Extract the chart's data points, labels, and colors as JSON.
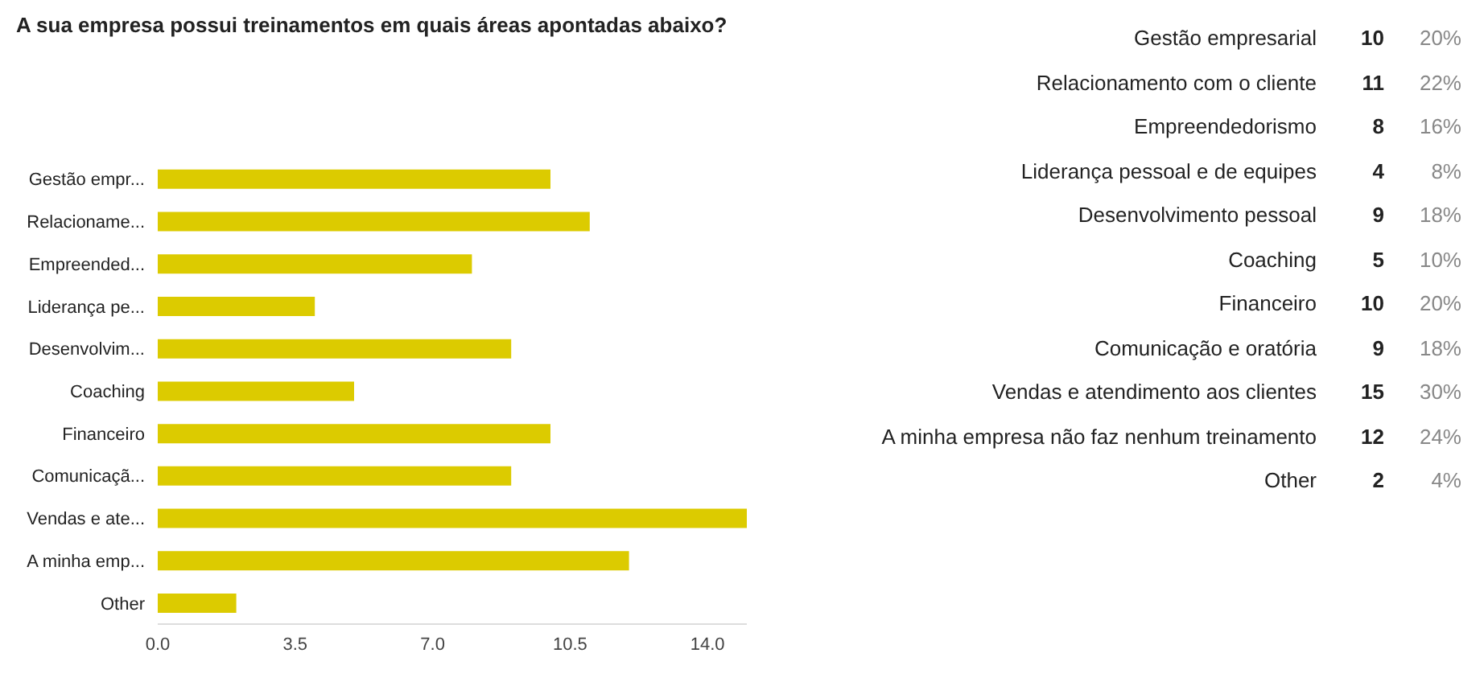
{
  "chart_data": [
    {
      "type": "bar",
      "orientation": "horizontal",
      "title": "A sua empresa possui treinamentos em quais áreas apontadas abaixo?",
      "categories": [
        "Gestão empr...",
        "Relacioname...",
        "Empreended...",
        "Liderança pe...",
        "Desenvolvim...",
        "Coaching",
        "Financeiro",
        "Comunicaçã...",
        "Vendas e ate...",
        "A minha emp...",
        "Other"
      ],
      "values": [
        10,
        11,
        8,
        4,
        9,
        5,
        10,
        9,
        15,
        12,
        2
      ],
      "color": "#dccb00",
      "xlim": [
        0,
        15
      ],
      "xticks": [
        {
          "value": 0,
          "label": "0.0"
        },
        3.5,
        {
          "value": 7,
          "label": "7.0"
        },
        10.5,
        {
          "value": 14,
          "label": "14.0"
        }
      ],
      "grid": false
    },
    {
      "type": "other",
      "categories": [
        "Gestão empresarial",
        "Relacionamento com o cliente",
        "Empreendedorismo",
        "Liderança pessoal e de equipes",
        "Desenvolvimento pessoal",
        "Coaching",
        "Financeiro",
        "Comunicação e oratória",
        "Vendas e atendimento aos clientes",
        "A minha empresa não faz nenhum treinamento",
        "Other"
      ],
      "data_labels": true,
      "series": [
        {
          "values": [
            10,
            11,
            8,
            4,
            9,
            5,
            10,
            9,
            15,
            12,
            2
          ]
        },
        {
          "values": [
            20,
            22,
            16,
            8,
            18,
            10,
            20,
            18,
            30,
            24,
            4
          ],
          "value_labels": [
            "20%",
            "22%",
            "16%",
            "8%",
            "18%",
            "10%",
            "20%",
            "18%",
            "30%",
            "24%",
            "4%"
          ]
        }
      ]
    }
  ]
}
